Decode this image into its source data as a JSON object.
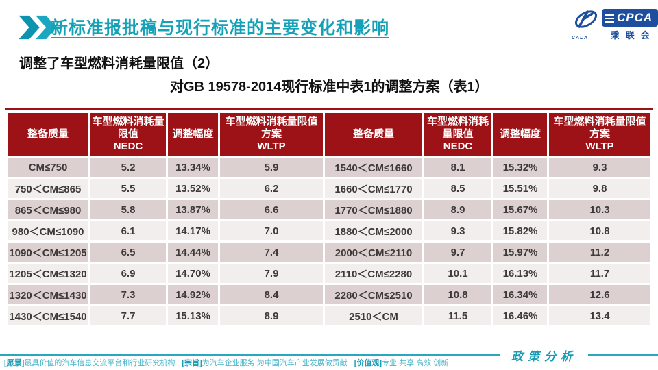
{
  "header": {
    "title": "新标准报批稿与现行标准的主要变化和影响"
  },
  "logo": {
    "abbr": "CPCA",
    "cn": "乘联会",
    "emblem_text": "CADA",
    "blue": "#1d4f9e"
  },
  "subtitles": {
    "line1": "调整了车型燃料消耗量限值（2）",
    "line2": "对GB 19578-2014现行标准中表1的调整方案（表1）"
  },
  "table": {
    "columns": [
      {
        "title": "整备质量",
        "sub": ""
      },
      {
        "title": "车型燃料消耗量限值",
        "sub": "NEDC"
      },
      {
        "title": "调整幅度",
        "sub": ""
      },
      {
        "title": "车型燃料消耗量限值方案",
        "sub": "WLTP"
      },
      {
        "title": "整备质量",
        "sub": ""
      },
      {
        "title": "车型燃料消耗量限值",
        "sub": "NEDC"
      },
      {
        "title": "调整幅度",
        "sub": ""
      },
      {
        "title": "车型燃料消耗量限值方案",
        "sub": "WLTP"
      }
    ],
    "rows": [
      [
        "CM≤750",
        "5.2",
        "13.34%",
        "5.9",
        "1540＜CM≤1660",
        "8.1",
        "15.32%",
        "9.3"
      ],
      [
        "750＜CM≤865",
        "5.5",
        "13.52%",
        "6.2",
        "1660＜CM≤1770",
        "8.5",
        "15.51%",
        "9.8"
      ],
      [
        "865＜CM≤980",
        "5.8",
        "13.87%",
        "6.6",
        "1770＜CM≤1880",
        "8.9",
        "15.67%",
        "10.3"
      ],
      [
        "980＜CM≤1090",
        "6.1",
        "14.17%",
        "7.0",
        "1880＜CM≤2000",
        "9.3",
        "15.82%",
        "10.8"
      ],
      [
        "1090＜CM≤1205",
        "6.5",
        "14.44%",
        "7.4",
        "2000＜CM≤2110",
        "9.7",
        "15.97%",
        "11.2"
      ],
      [
        "1205＜CM≤1320",
        "6.9",
        "14.70%",
        "7.9",
        "2110＜CM≤2280",
        "10.1",
        "16.13%",
        "11.7"
      ],
      [
        "1320＜CM≤1430",
        "7.3",
        "14.92%",
        "8.4",
        "2280＜CM≤2510",
        "10.8",
        "16.34%",
        "12.6"
      ],
      [
        "1430＜CM≤1540",
        "7.7",
        "15.13%",
        "8.9",
        "2510＜CM",
        "11.5",
        "16.46%",
        "13.4"
      ]
    ]
  },
  "footer": {
    "policy_label": "政策分析",
    "segments": [
      {
        "label": "[愿景]",
        "text": "最具价值的汽车信息交流平台和行业研究机构"
      },
      {
        "label": "[宗旨]",
        "text": "为汽车企业服务 为中国汽车产业发展做贡献"
      },
      {
        "label": "[价值观]",
        "text": "专业 共享 高效 创新"
      }
    ]
  },
  "colors": {
    "accent_teal": "#15a1b7",
    "table_header_red": "#9c1216",
    "row_odd": "#dcd0d1",
    "row_even": "#f2eeee",
    "logo_blue": "#1d4f9e",
    "footer_teal": "#2aa7c0"
  }
}
